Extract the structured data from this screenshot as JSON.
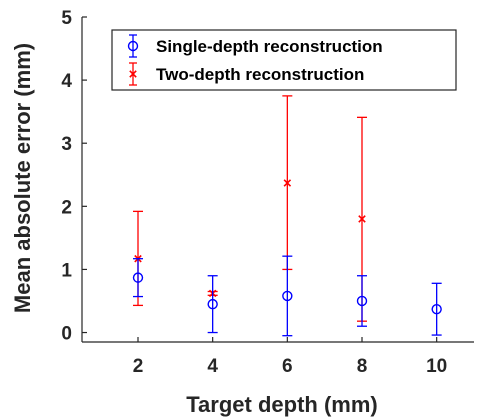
{
  "chart_data": {
    "type": "scatter",
    "title": "",
    "xlabel": "Target depth (mm)",
    "ylabel": "Mean absolute error (mm)",
    "xlim": [
      0.5,
      11
    ],
    "ylim": [
      -0.15,
      5
    ],
    "xticks": [
      2,
      4,
      6,
      8,
      10
    ],
    "yticks": [
      0,
      1,
      2,
      3,
      4,
      5
    ],
    "grid": false,
    "legend_position": "top",
    "series": [
      {
        "name": "Single-depth reconstruction",
        "marker": "circle",
        "color": "#0000ff",
        "points": [
          {
            "x": 2,
            "y": 0.87,
            "lo": 0.57,
            "hi": 1.17
          },
          {
            "x": 4,
            "y": 0.45,
            "lo": 0.0,
            "hi": 0.9
          },
          {
            "x": 6,
            "y": 0.58,
            "lo": -0.05,
            "hi": 1.21
          },
          {
            "x": 8,
            "y": 0.5,
            "lo": 0.1,
            "hi": 0.9
          },
          {
            "x": 10,
            "y": 0.37,
            "lo": -0.04,
            "hi": 0.78
          }
        ]
      },
      {
        "name": "Two-depth reconstruction",
        "marker": "x",
        "color": "#ff0000",
        "points": [
          {
            "x": 2,
            "y": 1.17,
            "lo": 0.43,
            "hi": 1.92
          },
          {
            "x": 4,
            "y": 0.62,
            "lo": 0.59,
            "hi": 0.65
          },
          {
            "x": 6,
            "y": 2.37,
            "lo": 1.0,
            "hi": 3.75
          },
          {
            "x": 8,
            "y": 1.8,
            "lo": 0.18,
            "hi": 3.41
          }
        ]
      }
    ]
  }
}
